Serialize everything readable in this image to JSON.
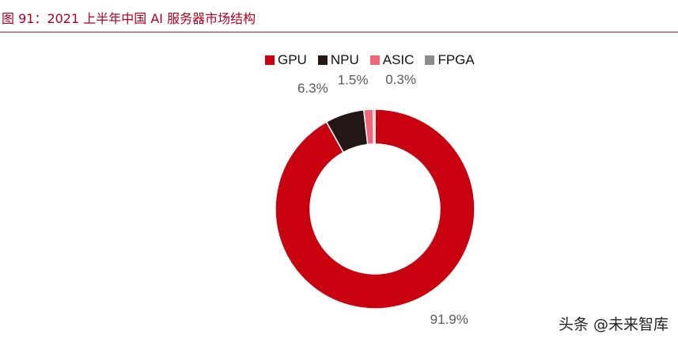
{
  "header": {
    "title": "图 91：2021 上半年中国 AI 服务器市场结构"
  },
  "chart_data": {
    "type": "pie",
    "donut": true,
    "categories": [
      "GPU",
      "NPU",
      "ASIC",
      "FPGA"
    ],
    "values": [
      91.9,
      6.3,
      1.5,
      0.3
    ],
    "labels": [
      "91.9%",
      "6.3%",
      "1.5%",
      "0.3%"
    ],
    "colors": [
      "#c8000f",
      "#231815",
      "#f2677a",
      "#8c8c8c"
    ],
    "legend": "top"
  },
  "legend": {
    "items": [
      {
        "label": "GPU",
        "color": "#c8000f"
      },
      {
        "label": "NPU",
        "color": "#231815"
      },
      {
        "label": "ASIC",
        "color": "#f2677a"
      },
      {
        "label": "FPGA",
        "color": "#8c8c8c"
      }
    ]
  },
  "watermark": "头条 @未来智库"
}
